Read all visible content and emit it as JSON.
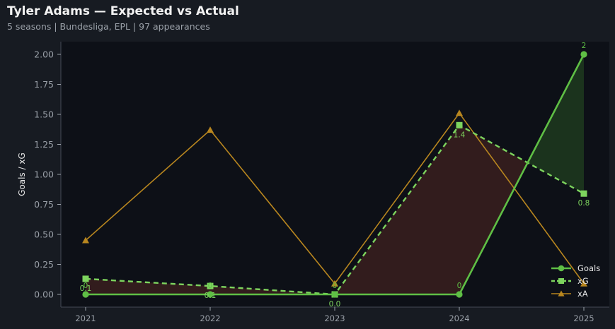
{
  "header": {
    "title": "Tyler Adams — Expected vs Actual",
    "subtitle": "5 seasons | Bundesliga, EPL | 97 appearances"
  },
  "colors": {
    "background": "#171b22",
    "plot_background": "#0d1017",
    "goals": "#5fbf45",
    "xg": "#7dd45e",
    "xa": "#b8861f",
    "underperform_fill": "#3a1e1e",
    "overperform_fill": "#1e3a1e"
  },
  "chart_data": {
    "type": "line",
    "title": "Tyler Adams — Expected vs Actual",
    "xlabel": "",
    "ylabel": "Goals / xG",
    "categories": [
      "2021",
      "2022",
      "2023",
      "2024",
      "2025"
    ],
    "ylim": [
      -0.1,
      2.1
    ],
    "yticks": [
      "0.00",
      "0.25",
      "0.50",
      "0.75",
      "1.00",
      "1.25",
      "1.50",
      "1.75",
      "2.00"
    ],
    "grid": false,
    "legend_position": "bottom-right",
    "series": [
      {
        "name": "Goals",
        "values": [
          0,
          0,
          0,
          0,
          2
        ],
        "marker": "circle",
        "line": "solid",
        "labels": [
          "0",
          "0",
          "0",
          "0",
          "2"
        ]
      },
      {
        "name": "xG",
        "values": [
          0.13,
          0.07,
          0.0,
          1.41,
          0.84
        ],
        "marker": "square",
        "line": "dashed",
        "labels": [
          "0.1",
          "0.1",
          "0.0",
          "1.4",
          "0.8"
        ]
      },
      {
        "name": "xA",
        "values": [
          0.45,
          1.37,
          0.09,
          1.51,
          0.09
        ],
        "marker": "triangle",
        "line": "solid"
      }
    ]
  }
}
